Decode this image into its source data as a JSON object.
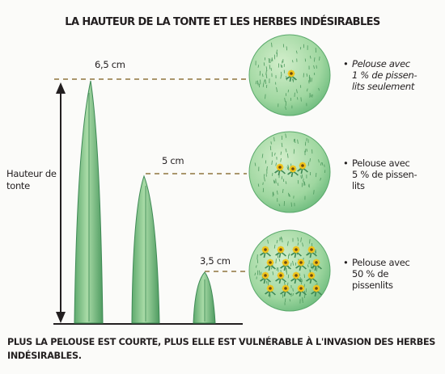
{
  "title": "LA HAUTEUR DE LA TONTE ET LES HERBES INDÉSIRABLES",
  "axis_label": [
    "Hauteur de",
    "tonte"
  ],
  "heights": [
    {
      "label": "6,5 cm",
      "value_cm": 6.5
    },
    {
      "label": "5 cm",
      "value_cm": 5
    },
    {
      "label": "3,5 cm",
      "value_cm": 3.5
    }
  ],
  "lawns": [
    {
      "lines": [
        "Pelouse avec",
        "1 % de pissen-",
        "lits seulement"
      ],
      "italic": true,
      "dandelion_count": 1
    },
    {
      "lines": [
        "Pelouse avec",
        "5 % de pissen-",
        "lits"
      ],
      "italic": false,
      "dandelion_count": 3
    },
    {
      "lines": [
        "Pelouse avec",
        "50 % de",
        "pissenlits"
      ],
      "italic": false,
      "dandelion_count": 16
    }
  ],
  "caption": "PLUS LA PELOUSE EST COURTE, PLUS ELLE EST VULNÉRABLE À L'INVASION DES HERBES INDÉSIRABLES.",
  "colors": {
    "grass_light": "#bfe3b9",
    "grass_mid": "#7ec78c",
    "grass_dark": "#3e8a55",
    "dash": "#7a5a18",
    "flower": "#f2c41a",
    "text": "#231f20"
  }
}
